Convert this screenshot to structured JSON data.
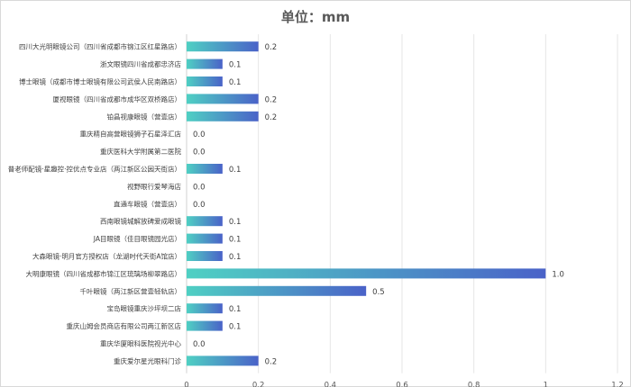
{
  "chart_data": {
    "type": "bar",
    "orientation": "horizontal",
    "title": "单位：mm",
    "categories": [
      "四川大光明眼镜公司（四川省成都市锦江区红星路店）",
      "浙文眼镜四川省成都忠济店",
      "博士眼镜（成都市博士眼镜有限公司武侯人民南路店）",
      "厦视眼镜（四川省成都市成华区双桥路店）",
      "铂昌视康眼镜（营壹店）",
      "重庆精自高营眼镜狮子石星泽汇店",
      "重庆医科大学附属第二医院",
      "普老师配镜·星趣控·控优点专业店（两江新区公园天街店）",
      "视野眼行爱琴海店",
      "直通车眼镜（营壹店）",
      "西南眼镜城解放碑爱成眼镜",
      "JA目眼镜（佳目眼镜园光店）",
      "大森眼镜·明月官方授权店（龙湖时代天街A馆店）",
      "大明康眼镜（四川省成都市锦江区琉璃场柳翠路店）",
      "千叶眼镜（两江新区营壹轻轨店）",
      "宝岛眼镜重庆沙坪坝二店",
      "重庆山姆会员商店有限公司两江新区店",
      "重庆华厦眼科医院视光中心",
      "重庆爱尔星光眼科门诊"
    ],
    "values": [
      0.2,
      0.1,
      0.1,
      0.2,
      0.2,
      0.0,
      0.0,
      0.1,
      0.0,
      0.0,
      0.1,
      0.1,
      0.1,
      1.0,
      0.5,
      0.1,
      0.1,
      0.0,
      0.2
    ],
    "value_labels": [
      "0.2",
      "0.1",
      "0.1",
      "0.2",
      "0.2",
      "0.0",
      "0.0",
      "0.1",
      "0.0",
      "0.0",
      "0.1",
      "0.1",
      "0.1",
      "1.0",
      "0.5",
      "0.1",
      "0.1",
      "0.0",
      "0.2"
    ],
    "xlim": [
      0,
      1.2
    ],
    "xticks": [
      "0",
      "0.2",
      "0.4",
      "0.6",
      "0.8",
      "1",
      "1.2"
    ],
    "grid": "vertical",
    "legend": "none",
    "bar_gradient": [
      "#4fd0c3",
      "#4a62c8"
    ]
  }
}
